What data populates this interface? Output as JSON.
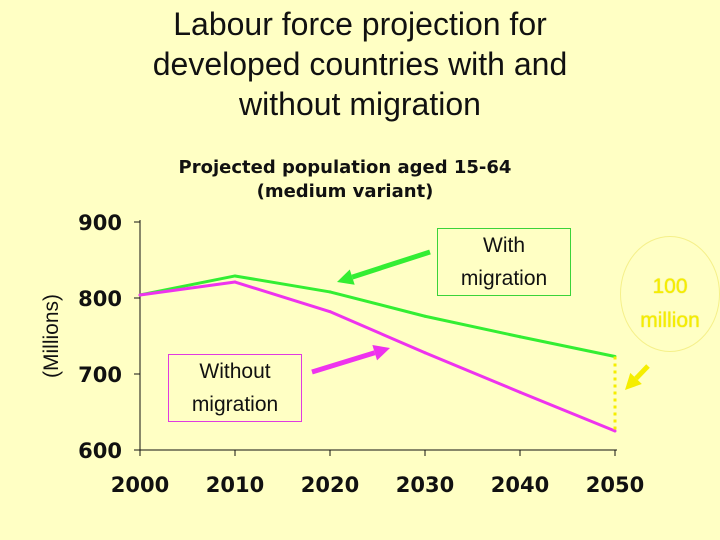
{
  "slide": {
    "title_lines": [
      "Labour force projection for",
      "developed countries with and",
      "without migration"
    ]
  },
  "colors": {
    "with_migration": "#33ee33",
    "without_migration": "#ee33ee",
    "gap": "#f5ee00",
    "background": "#ffffc4"
  },
  "annotations": {
    "with_migration": [
      "With",
      "migration"
    ],
    "without_migration": [
      "Without",
      "migration"
    ],
    "gap": [
      "100",
      "million"
    ]
  },
  "chart_data": {
    "type": "line",
    "title_lines": [
      "Projected population aged 15-64",
      "(medium variant)"
    ],
    "ylabel": "(Millions)",
    "x": [
      2000,
      2010,
      2020,
      2030,
      2040,
      2050
    ],
    "xlim": [
      2000,
      2050
    ],
    "ylim": [
      600,
      900
    ],
    "x_ticks": [
      "2000",
      "2010",
      "2020",
      "2030",
      "2040",
      "2050"
    ],
    "y_ticks": [
      "600",
      "700",
      "800",
      "900"
    ],
    "grid": false,
    "legend": "none",
    "series": [
      {
        "name": "With migration",
        "values": [
          804,
          829,
          808,
          776,
          749,
          723
        ]
      },
      {
        "name": "Without migration",
        "values": [
          804,
          821,
          782,
          728,
          676,
          625
        ]
      }
    ]
  }
}
